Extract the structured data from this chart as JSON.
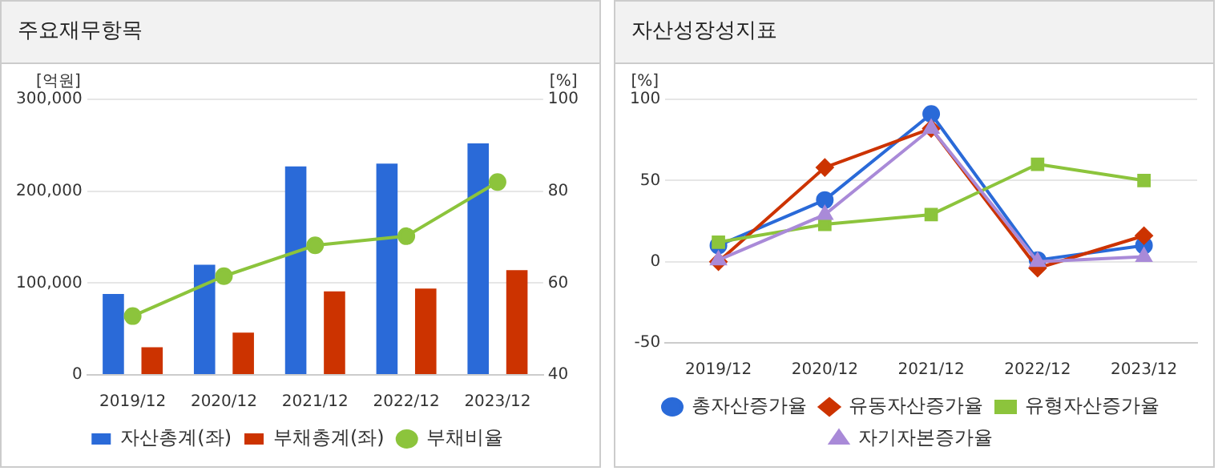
{
  "chart_data": [
    {
      "type": "bar",
      "title": "주요재무항목",
      "ylabel": "[억원]",
      "y2label": "[%]",
      "categories": [
        "2019/12",
        "2020/12",
        "2021/12",
        "2022/12",
        "2023/12"
      ],
      "series": [
        {
          "name": "자산총계(좌)",
          "type": "bar",
          "color": "#2a6ad8",
          "values": [
            88000,
            120000,
            227000,
            230000,
            252000
          ]
        },
        {
          "name": "부채총계(좌)",
          "type": "bar",
          "color": "#cc3300",
          "values": [
            30000,
            46000,
            91000,
            94000,
            114000
          ]
        },
        {
          "name": "부채비율",
          "type": "line",
          "axis": "y2",
          "color": "#8cc43c",
          "marker": "circle",
          "values": [
            52.8,
            61.5,
            68.2,
            70.2,
            82.0
          ]
        }
      ],
      "ylim": [
        0,
        300000
      ],
      "yticks": [
        {
          "value": 0,
          "label": "0"
        },
        {
          "value": 100000,
          "label": "100,000"
        },
        {
          "value": 200000,
          "label": "200,000"
        },
        {
          "value": 300000,
          "label": "300,000"
        }
      ],
      "y2lim": [
        40,
        100
      ],
      "y2ticks": [
        40,
        60,
        80,
        100
      ],
      "grid": "y",
      "legend": "bottom"
    },
    {
      "type": "line",
      "title": "자산성장성지표",
      "ylabel": "[%]",
      "categories": [
        "2019/12",
        "2020/12",
        "2021/12",
        "2022/12",
        "2023/12"
      ],
      "series": [
        {
          "name": "총자산증가율",
          "color": "#2a6ad8",
          "marker": "circle",
          "values": [
            10,
            38,
            91,
            1,
            10
          ]
        },
        {
          "name": "유동자산증가율",
          "color": "#cc3300",
          "marker": "diamond",
          "values": [
            0,
            58,
            82,
            -4,
            16
          ]
        },
        {
          "name": "유형자산증가율",
          "color": "#8cc43c",
          "marker": "square",
          "values": [
            12,
            23,
            29,
            60,
            50
          ]
        },
        {
          "name": "자기자본증가율",
          "color": "#a98ad8",
          "marker": "triangle",
          "values": [
            1,
            29,
            82,
            0,
            3
          ]
        }
      ],
      "ylim": [
        -50,
        100
      ],
      "yticks": [
        -50,
        0,
        50,
        100
      ],
      "grid": "y",
      "legend": "bottom"
    }
  ]
}
